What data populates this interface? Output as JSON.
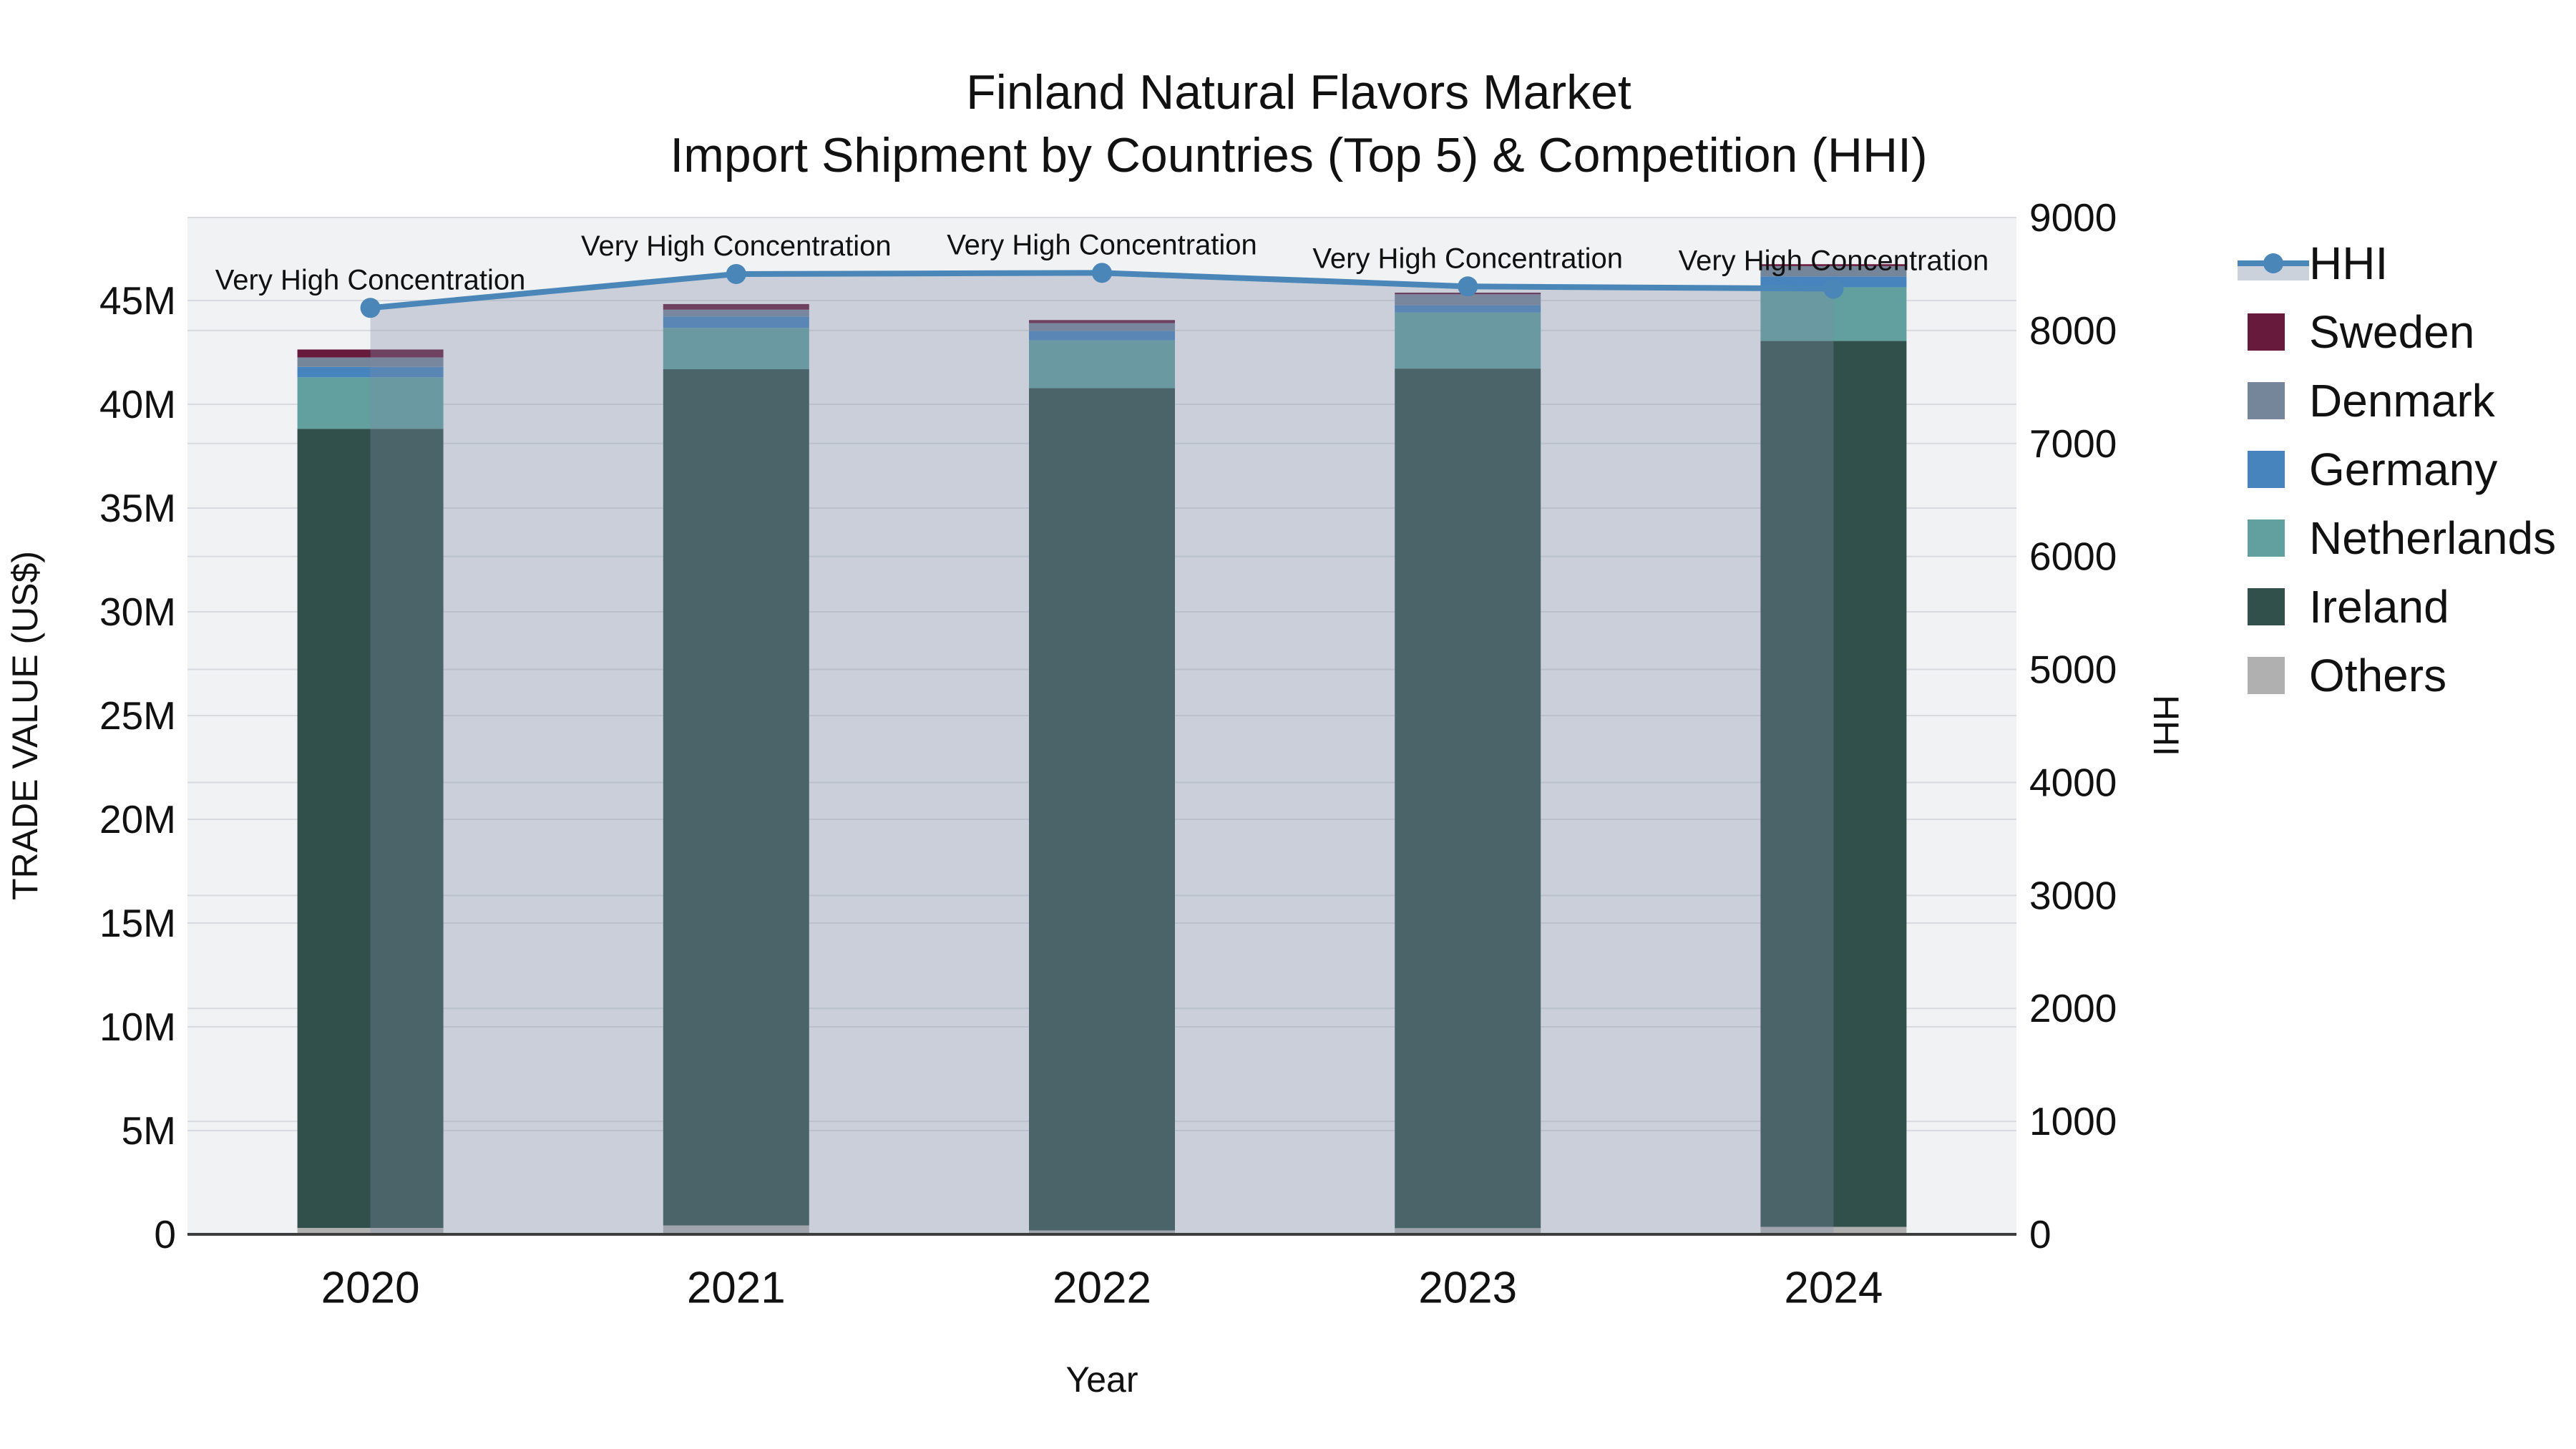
{
  "title": {
    "line1": "Finland Natural Flavors Market",
    "line2": "Import Shipment by Countries (Top 5) & Competition (HHI)"
  },
  "axes": {
    "x": {
      "title": "Year",
      "tick_labels": [
        "2020",
        "2021",
        "2022",
        "2023",
        "2024"
      ]
    },
    "y_left": {
      "title": "TRADE VALUE (US$)",
      "tick_labels": [
        "0",
        "5M",
        "10M",
        "15M",
        "20M",
        "25M",
        "30M",
        "35M",
        "40M",
        "45M"
      ],
      "tick_values": [
        0,
        5,
        10,
        15,
        20,
        25,
        30,
        35,
        40,
        45
      ],
      "range": [
        0,
        49
      ]
    },
    "y_right": {
      "title": "HHI",
      "tick_labels": [
        "0",
        "1000",
        "2000",
        "3000",
        "4000",
        "5000",
        "6000",
        "7000",
        "8000",
        "9000"
      ],
      "tick_values": [
        0,
        1000,
        2000,
        3000,
        4000,
        5000,
        6000,
        7000,
        8000,
        9000
      ],
      "range": [
        0,
        9000
      ]
    }
  },
  "legend": [
    {
      "label": "HHI",
      "type": "line",
      "color": "#4a86b8"
    },
    {
      "label": "Sweden",
      "type": "box",
      "color": "#681a3c"
    },
    {
      "label": "Denmark",
      "type": "box",
      "color": "#75859a"
    },
    {
      "label": "Germany",
      "type": "box",
      "color": "#4783bc"
    },
    {
      "label": "Netherlands",
      "type": "box",
      "color": "#61a09f"
    },
    {
      "label": "Ireland",
      "type": "box",
      "color": "#31504b"
    },
    {
      "label": "Others",
      "type": "box",
      "color": "#b0b0b0"
    }
  ],
  "colors": {
    "plot_background": "#f1f2f3",
    "gridline": "#d9dbe0",
    "axis_line": "#3d3d3d",
    "hhi_line": "#4a86b8",
    "hhi_fill": "rgba(125,142,168,0.34)",
    "legend_fill_band": "#ccd2db"
  },
  "chart_data": {
    "type": "bar",
    "subtype": "stacked-bars-with-line-overlay",
    "title": "Finland Natural Flavors Market — Import Shipment by Countries (Top 5) & Competition (HHI)",
    "categories": [
      "2020",
      "2021",
      "2022",
      "2023",
      "2024"
    ],
    "bar_value_unit": "Million US$",
    "series": [
      {
        "name": "Others",
        "color": "#b0b0b0",
        "values": [
          0.31,
          0.43,
          0.19,
          0.3,
          0.36
        ]
      },
      {
        "name": "Ireland",
        "color": "#31504b",
        "values": [
          38.51,
          41.26,
          40.59,
          41.42,
          42.69
        ]
      },
      {
        "name": "Netherlands",
        "color": "#61a09f",
        "values": [
          2.48,
          1.99,
          2.3,
          2.7,
          2.59
        ]
      },
      {
        "name": "Germany",
        "color": "#4783bc",
        "values": [
          0.5,
          0.55,
          0.45,
          0.34,
          0.52
        ]
      },
      {
        "name": "Denmark",
        "color": "#75859a",
        "values": [
          0.46,
          0.33,
          0.38,
          0.54,
          0.5
        ]
      },
      {
        "name": "Sweden",
        "color": "#681a3c",
        "values": [
          0.38,
          0.27,
          0.15,
          0.08,
          0.09
        ]
      }
    ],
    "bar_totals": [
      42.64,
      44.83,
      44.06,
      45.38,
      46.75
    ],
    "line": {
      "name": "HHI",
      "axis": "right",
      "color": "#4a86b8",
      "values": [
        8200,
        8500,
        8510,
        8390,
        8370
      ]
    },
    "annotations": [
      "Very High Concentration",
      "Very High Concentration",
      "Very High Concentration",
      "Very High Concentration",
      "Very High Concentration"
    ],
    "xlabel": "Year",
    "ylabel_left": "TRADE VALUE (US$)",
    "ylabel_right": "HHI",
    "ylim_left": [
      0,
      49
    ],
    "ylim_right": [
      0,
      9000
    ],
    "grid": true,
    "legend_position": "right"
  }
}
